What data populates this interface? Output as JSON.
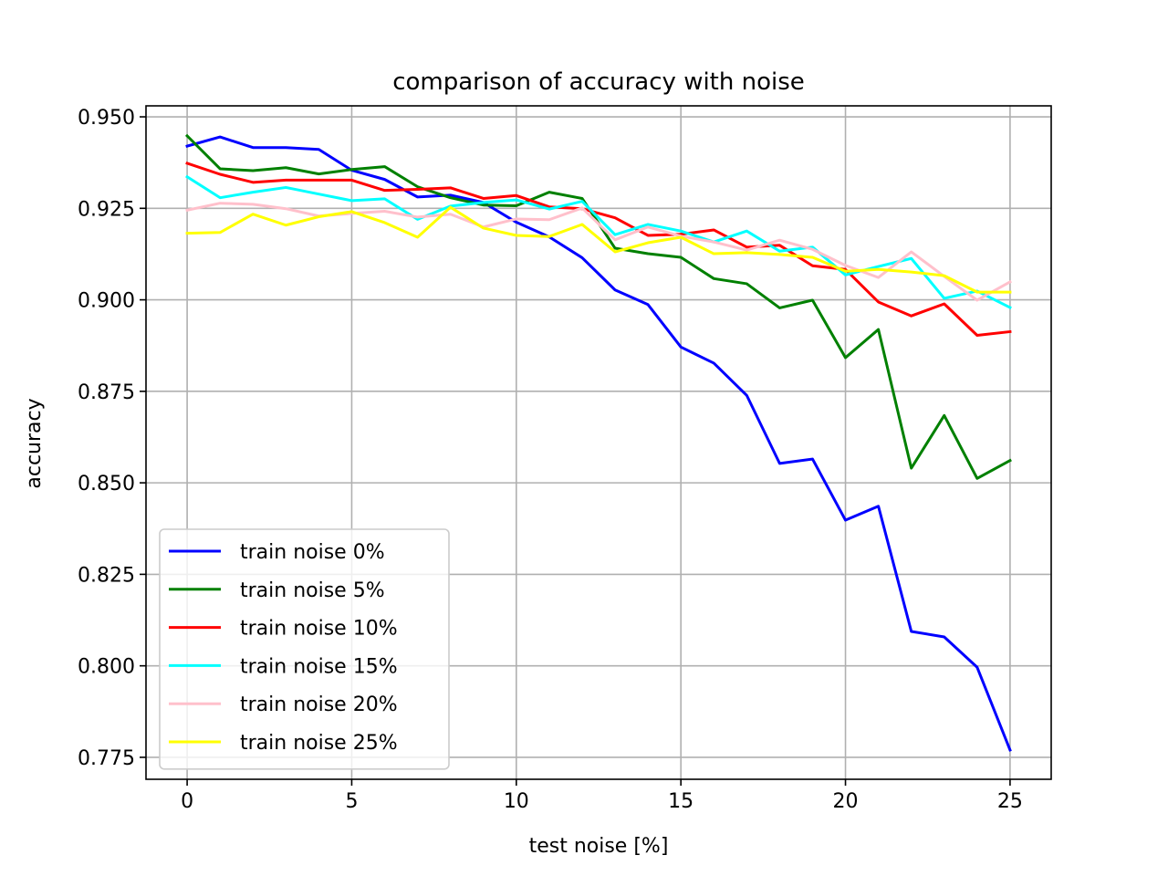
{
  "chart_data": {
    "type": "line",
    "title": "comparison of accuracy with noise",
    "xlabel": "test noise [%]",
    "ylabel": "accuracy",
    "xlim": [
      -1.25,
      26.25
    ],
    "ylim": [
      0.769,
      0.953
    ],
    "xticks": [
      0,
      5,
      10,
      15,
      20,
      25
    ],
    "xtick_labels": [
      "0",
      "5",
      "10",
      "15",
      "20",
      "25"
    ],
    "yticks": [
      0.775,
      0.8,
      0.825,
      0.85,
      0.875,
      0.9,
      0.925,
      0.95
    ],
    "ytick_labels": [
      "0.775",
      "0.800",
      "0.825",
      "0.850",
      "0.875",
      "0.900",
      "0.925",
      "0.950"
    ],
    "grid": true,
    "legend_position": "lower-left",
    "x": [
      0,
      1,
      2,
      3,
      4,
      5,
      6,
      7,
      8,
      9,
      10,
      11,
      12,
      13,
      14,
      15,
      16,
      17,
      18,
      19,
      20,
      21,
      22,
      23,
      24,
      25
    ],
    "series": [
      {
        "name": "train noise 0%",
        "color": "#0000ff",
        "values": [
          0.942,
          0.9445,
          0.9416,
          0.9416,
          0.9411,
          0.9354,
          0.9329,
          0.9281,
          0.9286,
          0.9266,
          0.9212,
          0.9172,
          0.9115,
          0.9027,
          0.8987,
          0.8871,
          0.8827,
          0.8739,
          0.8553,
          0.8565,
          0.8398,
          0.8436,
          0.8094,
          0.8079,
          0.7996,
          0.777
        ]
      },
      {
        "name": "train noise 5%",
        "color": "#008000",
        "values": [
          0.9448,
          0.9358,
          0.9353,
          0.9361,
          0.9344,
          0.9356,
          0.9364,
          0.9309,
          0.9279,
          0.9259,
          0.9257,
          0.9294,
          0.9277,
          0.9141,
          0.9126,
          0.9116,
          0.9058,
          0.9044,
          0.8978,
          0.8999,
          0.8842,
          0.8919,
          0.854,
          0.8684,
          0.8512,
          0.8561
        ]
      },
      {
        "name": "train noise 10%",
        "color": "#ff0000",
        "values": [
          0.9373,
          0.9343,
          0.9321,
          0.9327,
          0.9327,
          0.9327,
          0.9299,
          0.9302,
          0.9306,
          0.9277,
          0.9285,
          0.9254,
          0.9249,
          0.9224,
          0.9176,
          0.9179,
          0.9191,
          0.9144,
          0.9149,
          0.9093,
          0.9083,
          0.8994,
          0.8956,
          0.8989,
          0.8903,
          0.8913
        ]
      },
      {
        "name": "train noise 15%",
        "color": "#00ffff",
        "values": [
          0.9336,
          0.9279,
          0.9294,
          0.9307,
          0.9289,
          0.9271,
          0.9276,
          0.922,
          0.9256,
          0.9266,
          0.9273,
          0.9248,
          0.9269,
          0.9178,
          0.9206,
          0.9188,
          0.9158,
          0.9188,
          0.9133,
          0.9144,
          0.9068,
          0.9091,
          0.9113,
          0.9004,
          0.9024,
          0.8979
        ]
      },
      {
        "name": "train noise 20%",
        "color": "#ffc0cb",
        "values": [
          0.9245,
          0.9264,
          0.9261,
          0.9249,
          0.9229,
          0.9236,
          0.9242,
          0.9226,
          0.9234,
          0.9199,
          0.9221,
          0.9219,
          0.9251,
          0.9164,
          0.9199,
          0.9174,
          0.9158,
          0.9136,
          0.9163,
          0.9138,
          0.9094,
          0.9061,
          0.9131,
          0.9064,
          0.8999,
          0.9049
        ]
      },
      {
        "name": "train noise 25%",
        "color": "#ffff00",
        "values": [
          0.9182,
          0.9184,
          0.9234,
          0.9204,
          0.9227,
          0.9241,
          0.9211,
          0.9171,
          0.9253,
          0.9196,
          0.9176,
          0.9173,
          0.9206,
          0.9131,
          0.9156,
          0.9171,
          0.9126,
          0.9129,
          0.9124,
          0.9116,
          0.9078,
          0.9083,
          0.9076,
          0.9066,
          0.9021,
          0.9021
        ]
      }
    ]
  }
}
